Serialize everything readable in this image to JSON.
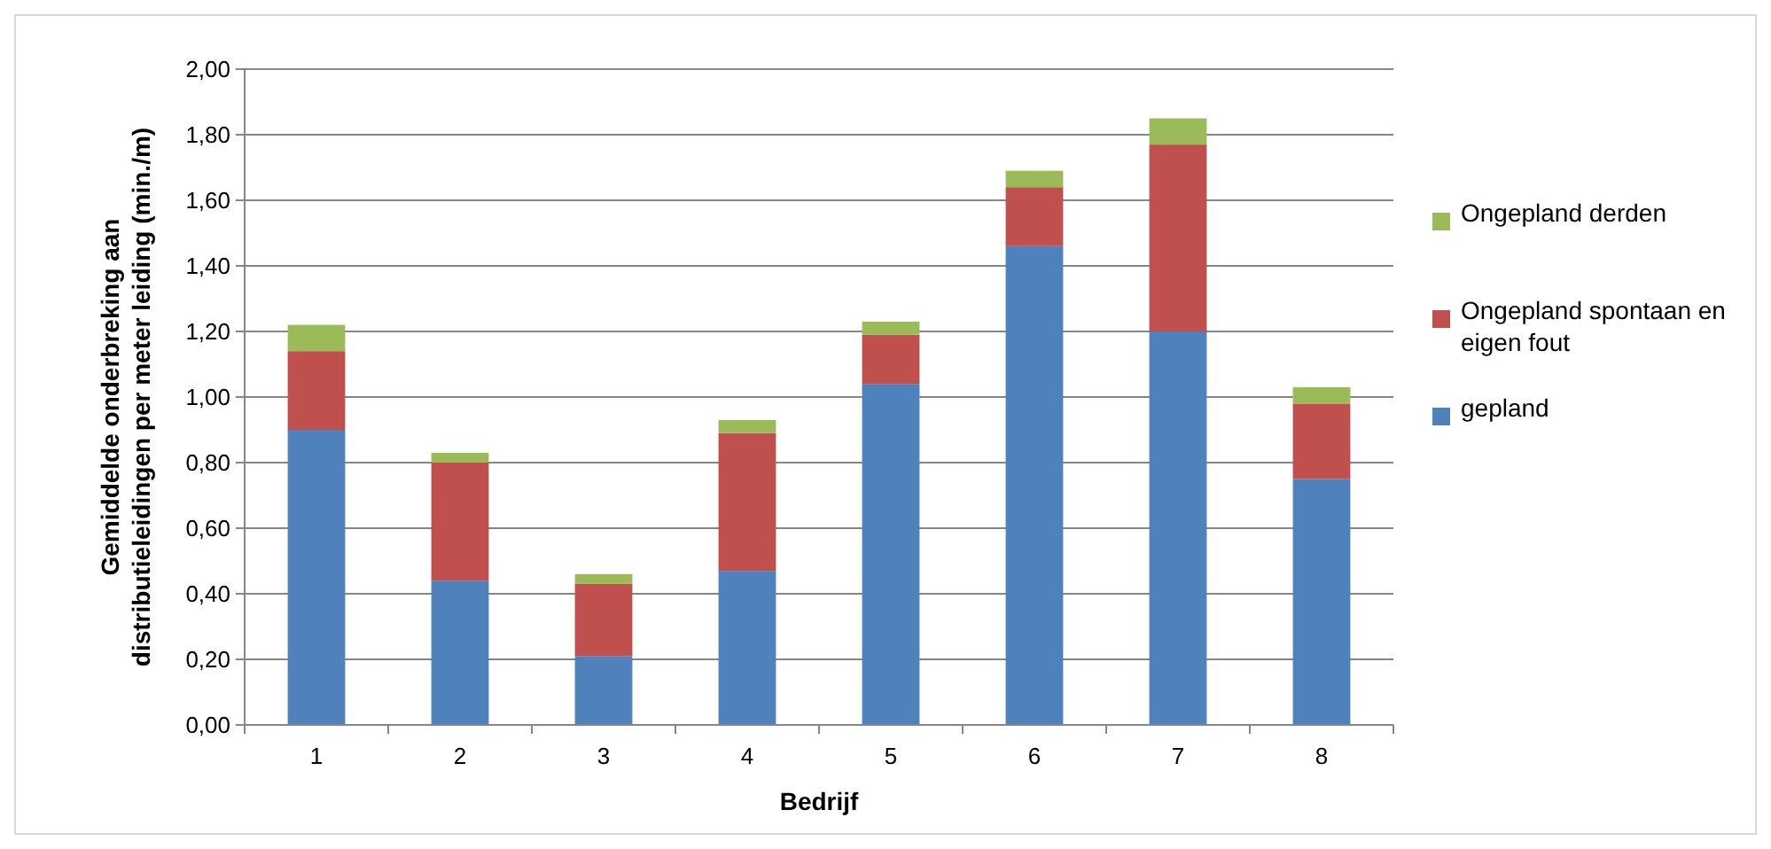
{
  "chart_data": {
    "type": "bar",
    "stacked": true,
    "xlabel": "Bedrijf",
    "ylabel": "Gemiddelde onderbreking aan distributieleidingen per meter leiding (min./m)",
    "categories": [
      "1",
      "2",
      "3",
      "4",
      "5",
      "6",
      "7",
      "8"
    ],
    "series": [
      {
        "name": "gepland",
        "color": "#4f81bd",
        "values": [
          0.9,
          0.44,
          0.21,
          0.47,
          1.04,
          1.46,
          1.2,
          0.75
        ]
      },
      {
        "name": "Ongepland spontaan en eigen fout",
        "color": "#c0504d",
        "values": [
          0.24,
          0.36,
          0.22,
          0.42,
          0.15,
          0.18,
          0.57,
          0.23
        ]
      },
      {
        "name": "Ongepland derden",
        "color": "#9bbb59",
        "values": [
          0.08,
          0.03,
          0.03,
          0.04,
          0.04,
          0.05,
          0.08,
          0.05
        ]
      }
    ],
    "ylim": [
      0,
      2
    ],
    "yticks": [
      {
        "value": 0,
        "label": "0,00"
      },
      {
        "value": 0.2,
        "label": "0,20"
      },
      {
        "value": 0.4,
        "label": "0,40"
      },
      {
        "value": 0.6,
        "label": "0,60"
      },
      {
        "value": 0.8,
        "label": "0,80"
      },
      {
        "value": 1,
        "label": "1,00"
      },
      {
        "value": 1.2,
        "label": "1,20"
      },
      {
        "value": 1.4,
        "label": "1,40"
      },
      {
        "value": 1.6,
        "label": "1,60"
      },
      {
        "value": 1.8,
        "label": "1,80"
      },
      {
        "value": 2,
        "label": "2,00"
      }
    ],
    "grid": "y",
    "legend": "right"
  }
}
